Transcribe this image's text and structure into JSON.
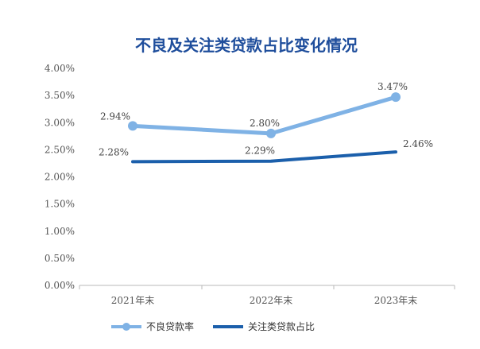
{
  "chart_data": {
    "type": "line",
    "title": "不良及关注类贷款占比变化情况",
    "categories": [
      "2021年末",
      "2022年末",
      "2023年末"
    ],
    "ylim": [
      0,
      4
    ],
    "y_ticks": [
      "0.00%",
      "0.50%",
      "1.00%",
      "1.50%",
      "2.00%",
      "2.50%",
      "3.00%",
      "3.50%",
      "4.00%"
    ],
    "y_tick_values": [
      0,
      0.5,
      1,
      1.5,
      2,
      2.5,
      3,
      3.5,
      4
    ],
    "grid": false,
    "legend_position": "bottom",
    "series": [
      {
        "name": "不良贷款率",
        "values": [
          2.94,
          2.8,
          3.47
        ],
        "labels": [
          "2.94%",
          "2.80%",
          "3.47%"
        ],
        "color": "#7fb2e5",
        "markers": true
      },
      {
        "name": "关注类贷款占比",
        "values": [
          2.28,
          2.29,
          2.46
        ],
        "labels": [
          "2.28%",
          "2.29%",
          "2.46%"
        ],
        "color": "#1b5fab",
        "markers": false
      }
    ]
  }
}
